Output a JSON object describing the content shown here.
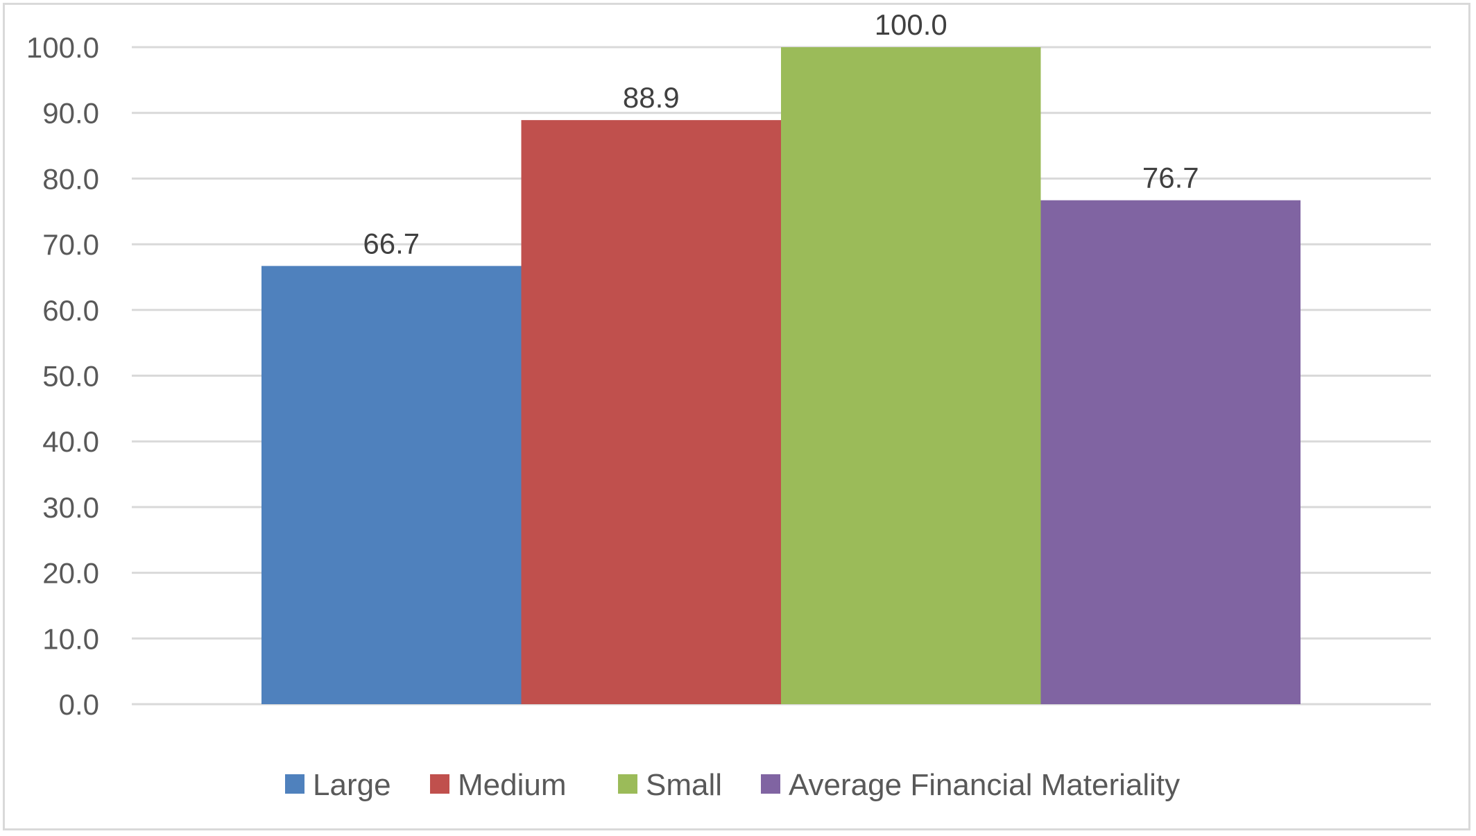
{
  "chart_data": {
    "type": "bar",
    "title": "",
    "xlabel": "",
    "ylabel": "",
    "categories": [
      ""
    ],
    "series": [
      {
        "name": "Large",
        "values": [
          66.7
        ],
        "color": "#4F81BD"
      },
      {
        "name": "Medium",
        "values": [
          88.9
        ],
        "color": "#C0504D"
      },
      {
        "name": "Small",
        "values": [
          100.0
        ],
        "color": "#9BBB59"
      },
      {
        "name": "Average Financial Materiality",
        "values": [
          76.7
        ],
        "color": "#8064A2"
      }
    ],
    "ylim": [
      0,
      100
    ],
    "yticks": [
      "0.0",
      "10.0",
      "20.0",
      "30.0",
      "40.0",
      "50.0",
      "60.0",
      "70.0",
      "80.0",
      "90.0",
      "100.0"
    ],
    "data_labels": [
      "66.7",
      "88.9",
      "100.0",
      "76.7"
    ],
    "grid": true,
    "gridline_color": "#D9D9D9",
    "legend_position": "bottom"
  }
}
